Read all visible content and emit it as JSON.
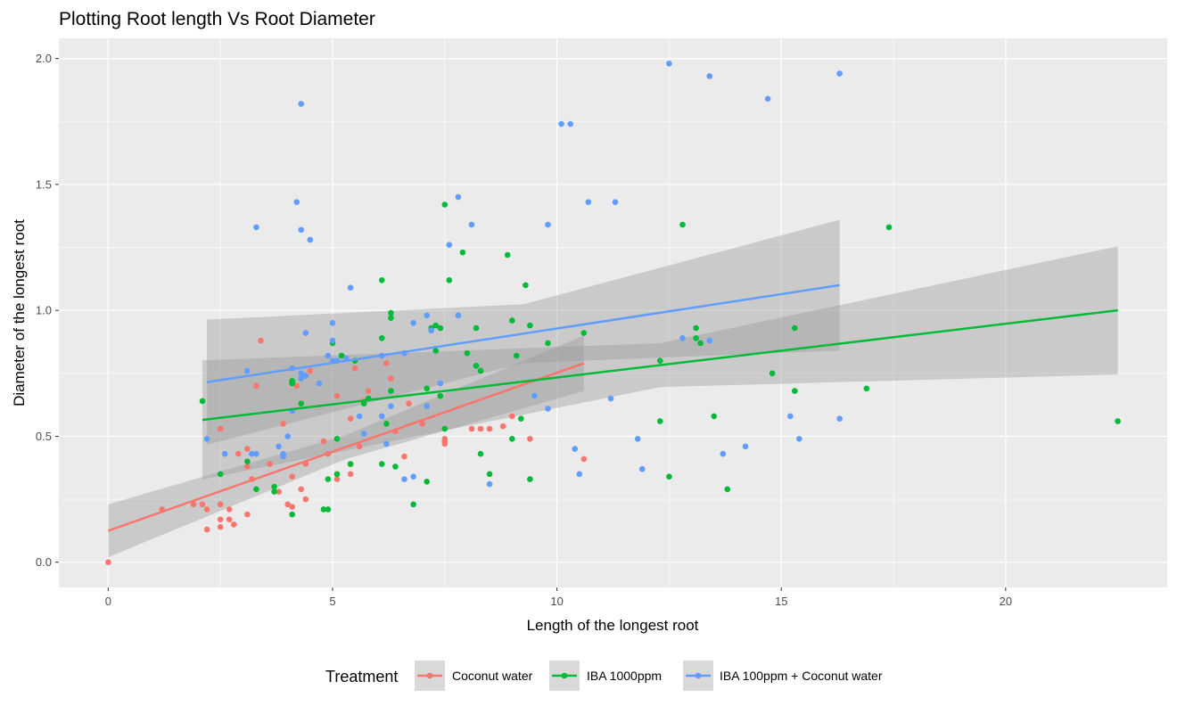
{
  "chart_data": {
    "type": "scatter",
    "title": "Plotting Root length Vs Root Diameter",
    "xlabel": "Length of the longest root",
    "ylabel": "Diameter of the longest root",
    "xlim": [
      -1.1,
      23.6
    ],
    "ylim": [
      -0.1,
      2.08
    ],
    "x_ticks": [
      0,
      5,
      10,
      15,
      20
    ],
    "y_ticks": [
      0.0,
      0.5,
      1.0,
      1.5,
      2.0
    ],
    "x_tick_labels": [
      "0",
      "5",
      "10",
      "15",
      "20"
    ],
    "y_tick_labels": [
      "0.0",
      "0.5",
      "1.0",
      "1.5",
      "2.0"
    ],
    "grid": true,
    "legend": {
      "title": "Treatment",
      "position": "bottom"
    },
    "series": [
      {
        "name": "Coconut water",
        "color": "#F8766D",
        "points": [
          [
            0.0,
            0.0
          ],
          [
            1.2,
            0.21
          ],
          [
            1.9,
            0.23
          ],
          [
            2.1,
            0.23
          ],
          [
            2.2,
            0.13
          ],
          [
            2.2,
            0.21
          ],
          [
            2.5,
            0.53
          ],
          [
            2.5,
            0.23
          ],
          [
            2.5,
            0.17
          ],
          [
            2.5,
            0.14
          ],
          [
            2.7,
            0.21
          ],
          [
            2.7,
            0.17
          ],
          [
            2.8,
            0.15
          ],
          [
            2.9,
            0.43
          ],
          [
            3.1,
            0.38
          ],
          [
            3.1,
            0.19
          ],
          [
            3.1,
            0.45
          ],
          [
            3.2,
            0.33
          ],
          [
            3.3,
            0.7
          ],
          [
            3.4,
            0.88
          ],
          [
            3.6,
            0.39
          ],
          [
            3.8,
            0.28
          ],
          [
            3.9,
            0.55
          ],
          [
            4.0,
            0.23
          ],
          [
            4.1,
            0.22
          ],
          [
            4.1,
            0.34
          ],
          [
            4.2,
            0.7
          ],
          [
            4.3,
            0.29
          ],
          [
            4.4,
            0.25
          ],
          [
            4.4,
            0.39
          ],
          [
            4.5,
            0.76
          ],
          [
            4.8,
            0.48
          ],
          [
            4.9,
            0.43
          ],
          [
            5.1,
            0.66
          ],
          [
            5.1,
            0.33
          ],
          [
            5.2,
            0.82
          ],
          [
            5.4,
            0.57
          ],
          [
            5.4,
            0.39
          ],
          [
            5.4,
            0.35
          ],
          [
            5.5,
            0.77
          ],
          [
            5.6,
            0.46
          ],
          [
            5.7,
            0.64
          ],
          [
            5.8,
            0.68
          ],
          [
            6.1,
            0.58
          ],
          [
            6.2,
            0.79
          ],
          [
            6.3,
            0.73
          ],
          [
            6.4,
            0.52
          ],
          [
            6.6,
            0.42
          ],
          [
            6.7,
            0.63
          ],
          [
            7.0,
            0.55
          ],
          [
            7.5,
            0.47
          ],
          [
            7.5,
            0.49
          ],
          [
            7.5,
            0.48
          ],
          [
            8.1,
            0.53
          ],
          [
            8.3,
            0.53
          ],
          [
            8.5,
            0.53
          ],
          [
            8.8,
            0.54
          ],
          [
            9.0,
            0.58
          ],
          [
            9.4,
            0.49
          ],
          [
            10.6,
            0.41
          ]
        ],
        "fit": {
          "x": [
            0,
            10.6
          ],
          "y": [
            0.125,
            0.79
          ],
          "band_half_width": [
            0.075,
            0.11
          ]
        }
      },
      {
        "name": "IBA 1000ppm",
        "color": "#00BA38",
        "points": [
          [
            2.1,
            0.64
          ],
          [
            2.5,
            0.35
          ],
          [
            3.1,
            0.4
          ],
          [
            3.3,
            0.29
          ],
          [
            3.7,
            0.3
          ],
          [
            3.7,
            0.28
          ],
          [
            4.1,
            0.19
          ],
          [
            4.1,
            0.72
          ],
          [
            4.1,
            0.71
          ],
          [
            4.3,
            0.63
          ],
          [
            4.8,
            0.21
          ],
          [
            4.9,
            0.21
          ],
          [
            4.9,
            0.33
          ],
          [
            5.0,
            0.87
          ],
          [
            5.1,
            0.49
          ],
          [
            5.1,
            0.35
          ],
          [
            5.2,
            0.82
          ],
          [
            5.4,
            0.39
          ],
          [
            5.5,
            0.8
          ],
          [
            5.7,
            0.63
          ],
          [
            5.8,
            0.65
          ],
          [
            6.1,
            1.12
          ],
          [
            6.1,
            0.89
          ],
          [
            6.1,
            0.39
          ],
          [
            6.2,
            0.55
          ],
          [
            6.3,
            0.99
          ],
          [
            6.3,
            0.97
          ],
          [
            6.3,
            0.68
          ],
          [
            6.4,
            0.38
          ],
          [
            6.8,
            0.23
          ],
          [
            7.1,
            0.69
          ],
          [
            7.1,
            0.32
          ],
          [
            7.2,
            0.93
          ],
          [
            7.3,
            0.94
          ],
          [
            7.3,
            0.84
          ],
          [
            7.4,
            0.93
          ],
          [
            7.4,
            0.66
          ],
          [
            7.5,
            1.42
          ],
          [
            7.5,
            0.53
          ],
          [
            7.6,
            1.12
          ],
          [
            7.9,
            1.23
          ],
          [
            8.0,
            0.83
          ],
          [
            8.2,
            0.93
          ],
          [
            8.2,
            0.78
          ],
          [
            8.3,
            0.76
          ],
          [
            8.3,
            0.43
          ],
          [
            8.5,
            0.35
          ],
          [
            8.9,
            1.22
          ],
          [
            9.0,
            0.96
          ],
          [
            9.0,
            0.49
          ],
          [
            9.1,
            0.82
          ],
          [
            9.2,
            0.57
          ],
          [
            9.3,
            1.1
          ],
          [
            9.4,
            0.94
          ],
          [
            9.4,
            0.33
          ],
          [
            9.8,
            0.87
          ],
          [
            10.6,
            0.91
          ],
          [
            12.3,
            0.8
          ],
          [
            12.3,
            0.56
          ],
          [
            12.5,
            0.34
          ],
          [
            12.8,
            1.34
          ],
          [
            13.1,
            0.93
          ],
          [
            13.1,
            0.89
          ],
          [
            13.2,
            0.87
          ],
          [
            13.5,
            0.58
          ],
          [
            13.8,
            0.29
          ],
          [
            14.8,
            0.75
          ],
          [
            15.3,
            0.93
          ],
          [
            15.3,
            0.68
          ],
          [
            16.9,
            0.69
          ],
          [
            17.4,
            1.33
          ],
          [
            22.5,
            0.56
          ]
        ],
        "fit": {
          "x": [
            2.1,
            22.5
          ],
          "y": [
            0.565,
            1.0
          ],
          "band_half_width": [
            0.13,
            0.25
          ]
        }
      },
      {
        "name": "IBA 100ppm + Coconut water",
        "color": "#619CFF",
        "points": [
          [
            2.2,
            0.49
          ],
          [
            2.6,
            0.43
          ],
          [
            3.1,
            0.76
          ],
          [
            3.2,
            0.43
          ],
          [
            3.3,
            0.43
          ],
          [
            3.3,
            1.33
          ],
          [
            3.8,
            0.46
          ],
          [
            3.9,
            0.43
          ],
          [
            3.9,
            0.42
          ],
          [
            4.0,
            0.5
          ],
          [
            4.1,
            0.77
          ],
          [
            4.1,
            0.6
          ],
          [
            4.2,
            1.43
          ],
          [
            4.3,
            0.75
          ],
          [
            4.3,
            0.73
          ],
          [
            4.3,
            1.32
          ],
          [
            4.3,
            1.82
          ],
          [
            4.4,
            0.74
          ],
          [
            4.4,
            0.91
          ],
          [
            4.5,
            1.28
          ],
          [
            4.7,
            0.71
          ],
          [
            4.9,
            0.82
          ],
          [
            5.0,
            0.8
          ],
          [
            5.0,
            0.95
          ],
          [
            5.0,
            0.88
          ],
          [
            5.1,
            0.8
          ],
          [
            5.3,
            0.81
          ],
          [
            5.4,
            1.09
          ],
          [
            5.6,
            0.58
          ],
          [
            5.7,
            0.51
          ],
          [
            6.1,
            0.82
          ],
          [
            6.1,
            0.58
          ],
          [
            6.2,
            0.47
          ],
          [
            6.3,
            0.62
          ],
          [
            6.6,
            0.33
          ],
          [
            6.6,
            0.83
          ],
          [
            6.8,
            0.95
          ],
          [
            6.8,
            0.34
          ],
          [
            7.1,
            0.98
          ],
          [
            7.1,
            0.62
          ],
          [
            7.2,
            0.92
          ],
          [
            7.4,
            0.71
          ],
          [
            7.6,
            1.26
          ],
          [
            7.8,
            0.98
          ],
          [
            7.8,
            1.45
          ],
          [
            8.1,
            1.34
          ],
          [
            8.5,
            0.31
          ],
          [
            9.5,
            0.66
          ],
          [
            9.8,
            0.61
          ],
          [
            9.8,
            1.34
          ],
          [
            10.1,
            1.74
          ],
          [
            10.3,
            1.74
          ],
          [
            10.4,
            0.45
          ],
          [
            10.5,
            0.35
          ],
          [
            10.7,
            1.43
          ],
          [
            11.2,
            0.65
          ],
          [
            11.3,
            1.43
          ],
          [
            11.8,
            0.49
          ],
          [
            11.9,
            0.37
          ],
          [
            12.5,
            1.98
          ],
          [
            12.8,
            0.89
          ],
          [
            13.4,
            1.93
          ],
          [
            13.4,
            0.88
          ],
          [
            13.7,
            0.43
          ],
          [
            14.2,
            0.46
          ],
          [
            14.7,
            1.84
          ],
          [
            15.2,
            0.58
          ],
          [
            15.4,
            0.49
          ],
          [
            16.3,
            1.94
          ],
          [
            16.3,
            0.57
          ]
        ],
        "fit": {
          "x": [
            2.2,
            16.3
          ],
          "y": [
            0.715,
            1.1
          ],
          "band_half_width": [
            0.185,
            0.26
          ]
        }
      }
    ]
  }
}
